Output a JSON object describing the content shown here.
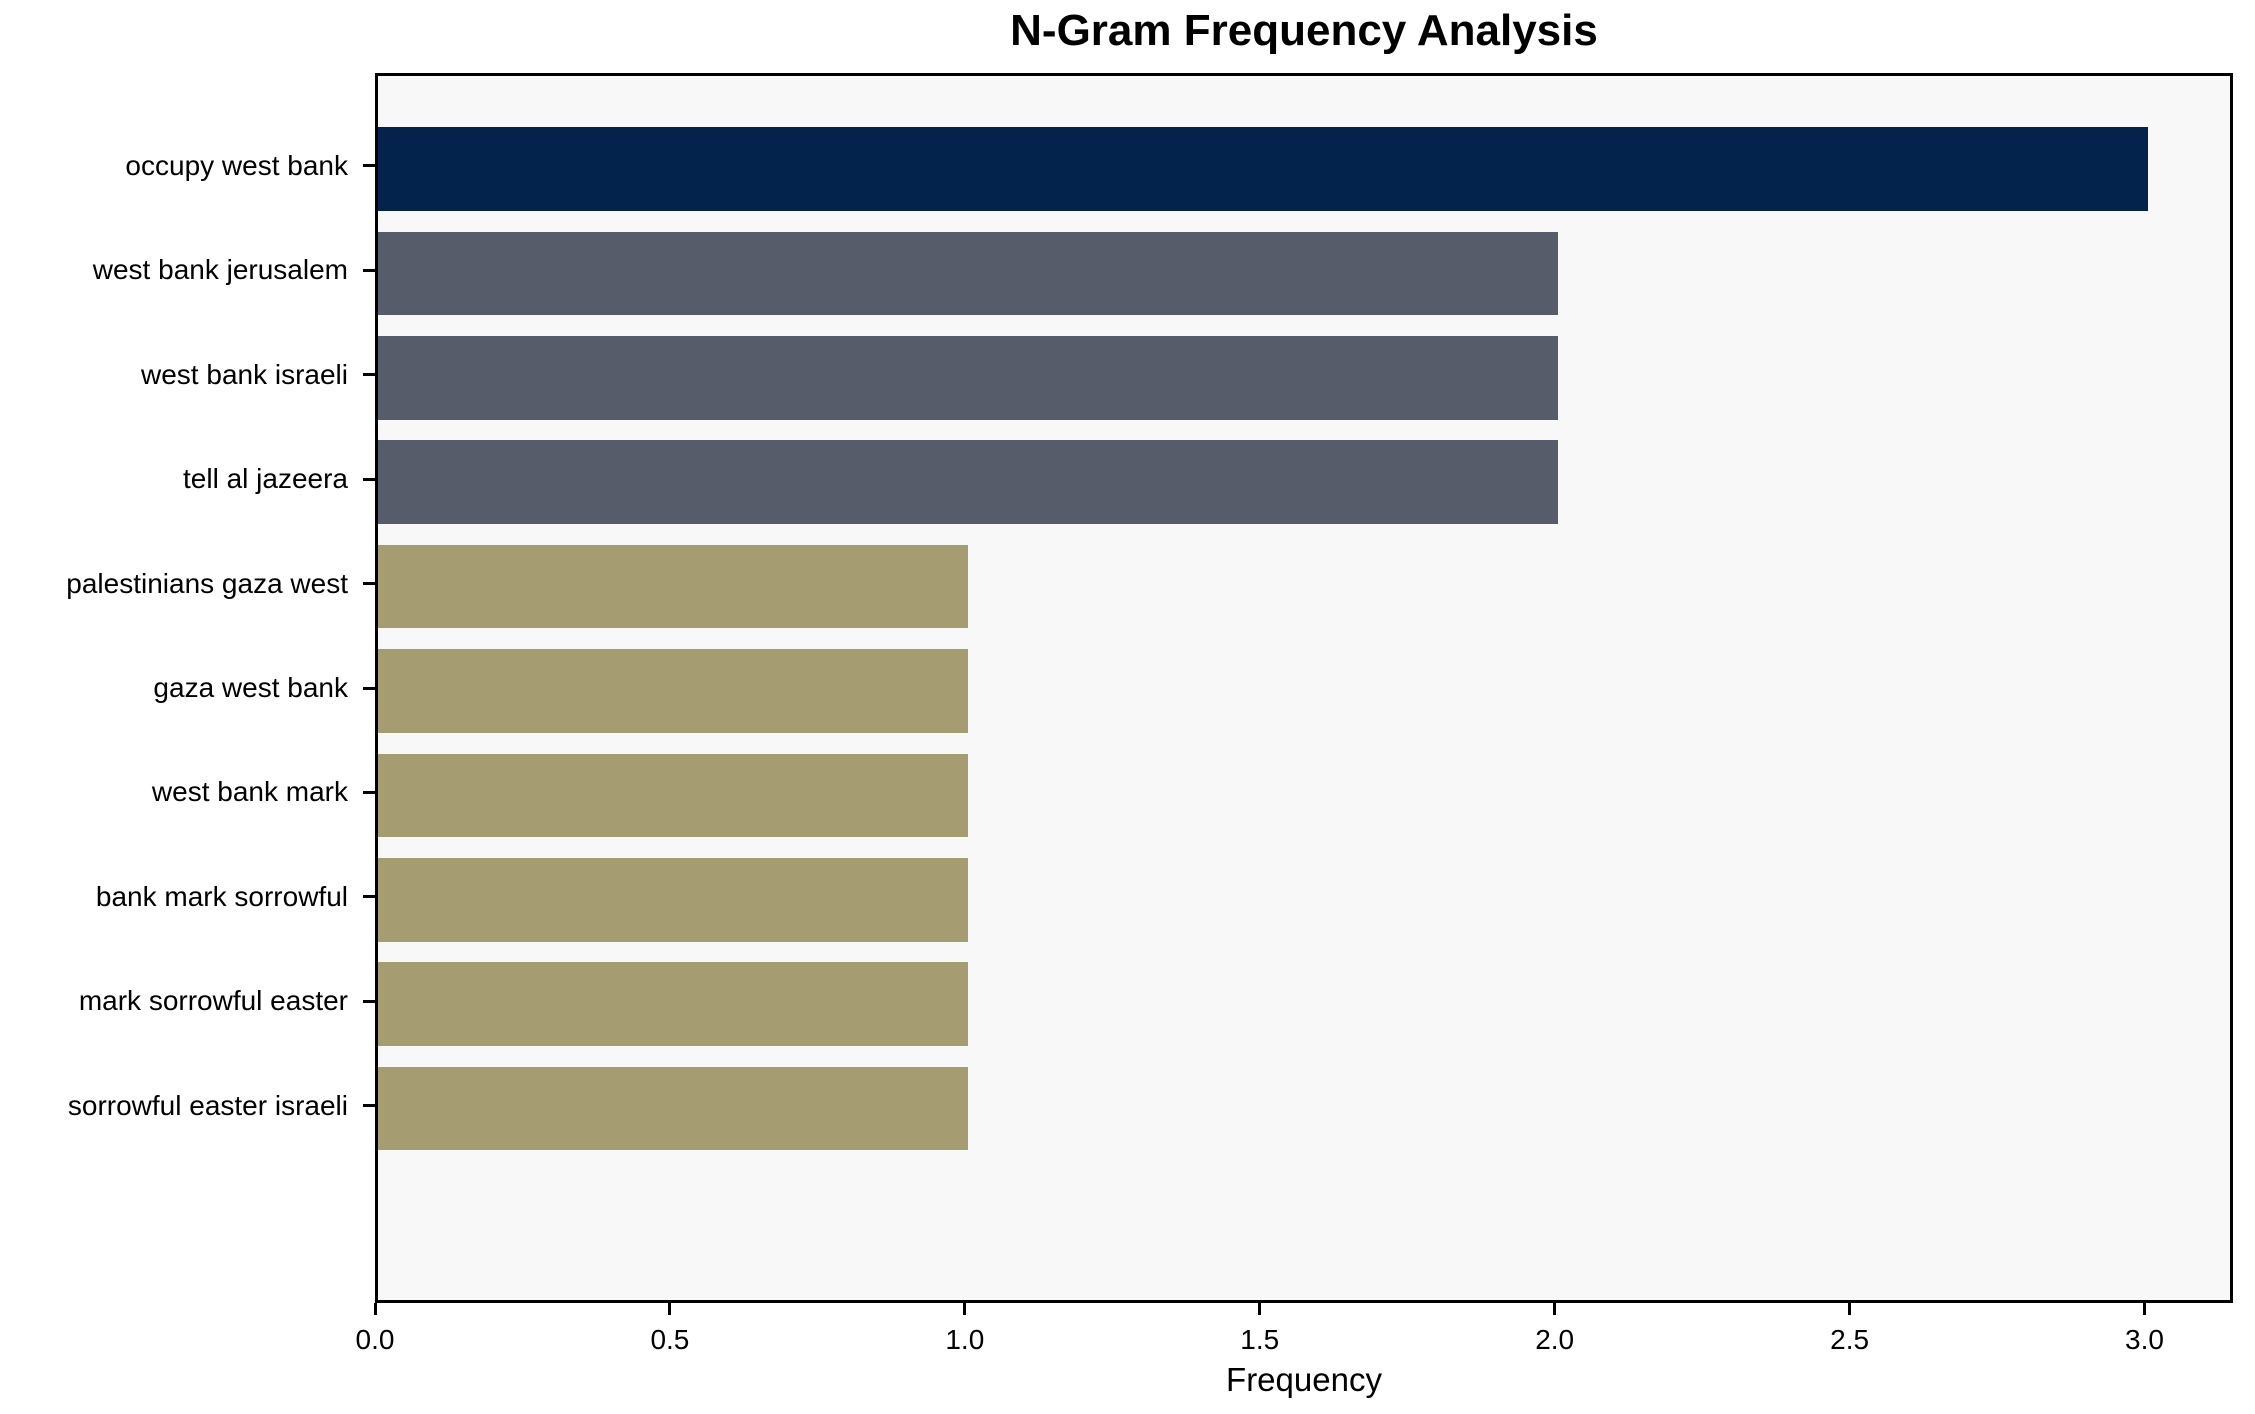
{
  "chart_data": {
    "type": "bar",
    "orientation": "horizontal",
    "title": "N-Gram Frequency Analysis",
    "xlabel": "Frequency",
    "ylabel": "",
    "categories": [
      "occupy west bank",
      "west bank jerusalem",
      "west bank israeli",
      "tell al jazeera",
      "palestinians gaza west",
      "gaza west bank",
      "west bank mark",
      "bank mark sorrowful",
      "mark sorrowful easter",
      "sorrowful easter israeli"
    ],
    "values": [
      3,
      2,
      2,
      2,
      1,
      1,
      1,
      1,
      1,
      1
    ],
    "bar_colors": [
      "#03234d",
      "#565c6a",
      "#565c6a",
      "#565c6a",
      "#a59c72",
      "#a59c72",
      "#a59c72",
      "#a59c72",
      "#a59c72",
      "#a59c72"
    ],
    "xlim": [
      0,
      3.15
    ],
    "x_ticks": [
      0.0,
      0.5,
      1.0,
      1.5,
      2.0,
      2.5,
      3.0
    ],
    "x_tick_labels": [
      "0.0",
      "0.5",
      "1.0",
      "1.5",
      "2.0",
      "2.5",
      "3.0"
    ],
    "grid": false,
    "legend": null,
    "plot_background": "#f8f8f8",
    "figure_background": "#ffffff",
    "axis_color": "#000000"
  }
}
